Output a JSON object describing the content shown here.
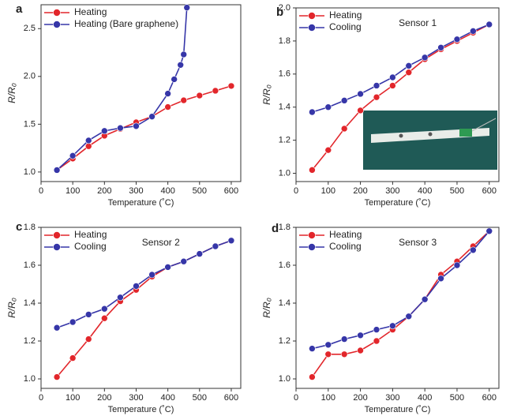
{
  "chart_data": [
    {
      "type": "line",
      "label": "a",
      "xlabel": "Temperature (˚C)",
      "ylabel": "R/R₀",
      "xlim": [
        0,
        630
      ],
      "ylim": [
        0.9,
        2.75
      ],
      "xticks": [
        0,
        100,
        200,
        300,
        400,
        500,
        600
      ],
      "yticks": [
        {
          "value": 1,
          "label": "1.0"
        },
        {
          "value": 1.5,
          "label": "1.5"
        },
        {
          "value": 2,
          "label": "2.0"
        },
        {
          "value": 2.5,
          "label": "2.5"
        }
      ],
      "legend": "upper left",
      "series": [
        {
          "name": "Heating",
          "color": "#e2262b",
          "x": [
            50,
            100,
            150,
            200,
            250,
            300,
            350,
            400,
            450,
            500,
            550,
            600
          ],
          "values": [
            1.02,
            1.14,
            1.27,
            1.38,
            1.45,
            1.52,
            1.58,
            1.68,
            1.75,
            1.8,
            1.85,
            1.9
          ]
        },
        {
          "name": "Heating (Bare graphene)",
          "color": "#3636a8",
          "x": [
            50,
            100,
            150,
            200,
            250,
            300,
            350,
            400,
            420,
            440,
            450,
            460
          ],
          "values": [
            1.02,
            1.17,
            1.33,
            1.43,
            1.46,
            1.48,
            1.58,
            1.82,
            1.97,
            2.12,
            2.23,
            2.72
          ]
        }
      ]
    },
    {
      "type": "line",
      "label": "b",
      "annotation": "Sensor 1",
      "xlabel": "Temperature (˚C)",
      "ylabel": "R/R₀",
      "xlim": [
        0,
        630
      ],
      "ylim": [
        0.95,
        2.0
      ],
      "xticks": [
        0,
        100,
        200,
        300,
        400,
        500,
        600
      ],
      "yticks": [
        {
          "value": 1,
          "label": "1.0"
        },
        1.2,
        1.4,
        1.6,
        1.8,
        {
          "value": 2,
          "label": "2.0"
        }
      ],
      "legend": "upper left",
      "x": [
        50,
        100,
        150,
        200,
        250,
        300,
        350,
        400,
        450,
        500,
        550,
        600
      ],
      "series": [
        {
          "name": "Heating",
          "color": "#e2262b",
          "values": [
            1.02,
            1.14,
            1.27,
            1.38,
            1.46,
            1.53,
            1.61,
            1.69,
            1.75,
            1.8,
            1.85,
            1.9
          ]
        },
        {
          "name": "Cooling",
          "color": "#3636a8",
          "values": [
            1.37,
            1.4,
            1.44,
            1.48,
            1.53,
            1.58,
            1.65,
            1.7,
            1.76,
            1.81,
            1.86,
            1.9
          ]
        }
      ]
    },
    {
      "type": "line",
      "label": "c",
      "annotation": "Sensor 2",
      "xlabel": "Temperature (˚C)",
      "ylabel": "R/R₀",
      "xlim": [
        0,
        630
      ],
      "ylim": [
        0.95,
        1.8
      ],
      "xticks": [
        0,
        100,
        200,
        300,
        400,
        500,
        600
      ],
      "yticks": [
        {
          "value": 1,
          "label": "1.0"
        },
        1.2,
        1.4,
        1.6,
        1.8
      ],
      "legend": "upper left",
      "x": [
        50,
        100,
        150,
        200,
        250,
        300,
        350,
        400,
        450,
        500,
        550,
        600
      ],
      "series": [
        {
          "name": "Heating",
          "color": "#e2262b",
          "values": [
            1.01,
            1.11,
            1.21,
            1.32,
            1.41,
            1.47,
            1.54,
            1.59,
            1.62,
            1.66,
            1.7,
            1.73
          ]
        },
        {
          "name": "Cooling",
          "color": "#3636a8",
          "values": [
            1.27,
            1.3,
            1.34,
            1.37,
            1.43,
            1.49,
            1.55,
            1.59,
            1.62,
            1.66,
            1.7,
            1.73
          ]
        }
      ]
    },
    {
      "type": "line",
      "label": "d",
      "annotation": "Sensor 3",
      "xlabel": "Temperature (˚C)",
      "ylabel": "R/R₀",
      "xlim": [
        0,
        630
      ],
      "ylim": [
        0.95,
        1.8
      ],
      "xticks": [
        0,
        100,
        200,
        300,
        400,
        500,
        600
      ],
      "yticks": [
        {
          "value": 1,
          "label": "1.0"
        },
        1.2,
        1.4,
        1.6,
        1.8
      ],
      "legend": "upper left",
      "x": [
        50,
        100,
        150,
        200,
        250,
        300,
        350,
        400,
        450,
        500,
        550,
        600
      ],
      "series": [
        {
          "name": "Heating",
          "color": "#e2262b",
          "values": [
            1.01,
            1.13,
            1.13,
            1.15,
            1.2,
            1.26,
            1.33,
            1.42,
            1.55,
            1.62,
            1.7,
            1.78
          ]
        },
        {
          "name": "Cooling",
          "color": "#3636a8",
          "values": [
            1.16,
            1.18,
            1.21,
            1.23,
            1.26,
            1.28,
            1.33,
            1.42,
            1.53,
            1.6,
            1.68,
            1.78
          ]
        }
      ]
    }
  ]
}
